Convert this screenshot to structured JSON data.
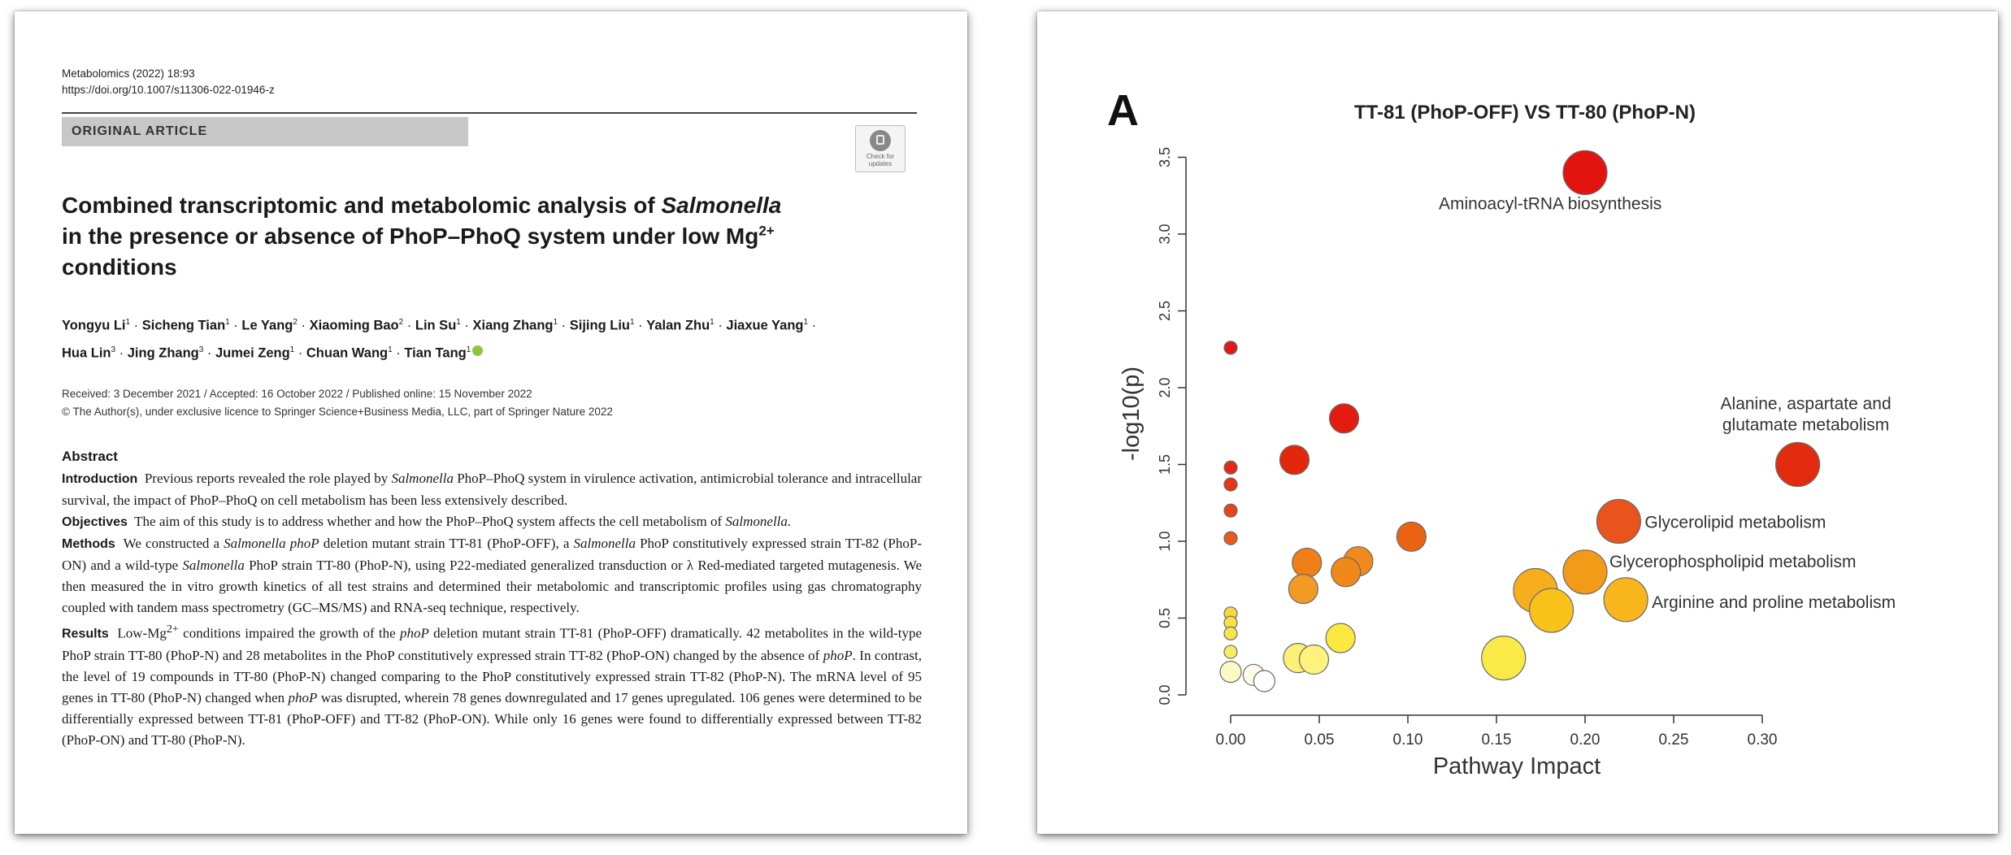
{
  "paper": {
    "journal_line": "Metabolomics (2022) 18:93",
    "doi": "https://doi.org/10.1007/s11306-022-01946-z",
    "article_type": "ORIGINAL ARTICLE",
    "check_updates_line1": "Check for",
    "check_updates_line2": "updates",
    "title_part1": "Combined transcriptomic and metabolomic analysis of ",
    "title_italic": "Salmonella",
    "title_part2": "in the presence or absence of PhoP–PhoQ system under low Mg",
    "title_sup": "2+",
    "title_part3": "conditions",
    "authors_line1": [
      {
        "name": "Yongyu Li",
        "aff": "1"
      },
      {
        "name": "Sicheng Tian",
        "aff": "1"
      },
      {
        "name": "Le Yang",
        "aff": "2"
      },
      {
        "name": "Xiaoming Bao",
        "aff": "2"
      },
      {
        "name": "Lin Su",
        "aff": "1"
      },
      {
        "name": "Xiang Zhang",
        "aff": "1"
      },
      {
        "name": "Sijing Liu",
        "aff": "1"
      },
      {
        "name": "Yalan Zhu",
        "aff": "1"
      },
      {
        "name": "Jiaxue Yang",
        "aff": "1"
      }
    ],
    "authors_line2": [
      {
        "name": "Hua Lin",
        "aff": "3"
      },
      {
        "name": "Jing Zhang",
        "aff": "3"
      },
      {
        "name": "Jumei Zeng",
        "aff": "1"
      },
      {
        "name": "Chuan Wang",
        "aff": "1"
      },
      {
        "name": "Tian Tang",
        "aff": "1"
      }
    ],
    "dates": "Received: 3 December 2021 / Accepted: 16 October 2022 / Published online: 15 November 2022",
    "copyright": "© The Author(s), under exclusive licence to Springer Science+Business Media, LLC, part of Springer Nature 2022",
    "abstract_heading": "Abstract",
    "intro_label": "Introduction",
    "intro_text_a": "Previous reports revealed the role played by ",
    "intro_italic": "Salmonella",
    "intro_text_b": " PhoP–PhoQ system in virulence activation, antimicrobial tolerance and intracellular survival, the impact of PhoP–PhoQ on cell metabolism has been less extensively described.",
    "objectives_label": "Objectives",
    "objectives_text": "The aim of this study is to address whether and how the PhoP–PhoQ system affects the cell metabolism of ",
    "objectives_italic": "Salmonella.",
    "methods_label": "Methods",
    "methods_text_a": "We constructed a ",
    "methods_italic_a": "Salmonella phoP",
    "methods_text_b": " deletion mutant strain TT-81 (PhoP-OFF), a ",
    "methods_italic_b": "Salmonella",
    "methods_text_c": " PhoP constitutively expressed strain TT-82 (PhoP-ON) and a wild-type ",
    "methods_italic_c": "Salmonella",
    "methods_text_d": " PhoP strain TT-80 (PhoP-N), using P22-mediated generalized transduction or λ Red-mediated targeted mutagenesis. We then measured the in vitro growth kinetics of all test strains and determined their metabolomic and transcriptomic profiles using gas chromatography coupled with tandem mass spectrometry (GC–MS/MS) and RNA-seq technique, respectively.",
    "results_label": "Results",
    "results_text_a": "Low-Mg",
    "results_sup": "2+",
    "results_text_b": " conditions impaired the growth of the ",
    "results_italic_a": "phoP",
    "results_text_c": " deletion mutant strain TT-81 (PhoP-OFF) dramatically. 42 metabolites in the wild-type PhoP strain TT-80 (PhoP-N) and 28 metabolites in the PhoP constitutively expressed strain TT-82 (PhoP-ON) changed by the absence of ",
    "results_italic_b": "phoP",
    "results_text_d": ". In contrast, the level of 19 compounds in TT-80 (PhoP-N) changed comparing to the PhoP constitutively expressed strain TT-82 (PhoP-N). The mRNA level of 95 genes in TT-80 (PhoP-N) changed when ",
    "results_italic_c": "phoP",
    "results_text_e": " was disrupted, wherein 78 genes downregulated and 17 genes upregulated. 106 genes were determined to be differentially expressed between TT-81 (PhoP-OFF) and TT-82 (PhoP-ON). While only 16 genes were found to differentially expressed between TT-82 (PhoP-ON) and TT-80 (PhoP-N)."
  },
  "chart_data": {
    "type": "scatter",
    "panel_label": "A",
    "title": "TT-81 (PhoP-OFF) VS TT-80 (PhoP-N)",
    "xlabel": "Pathway Impact",
    "ylabel": "-log10(p)",
    "xlim": [
      0,
      0.34
    ],
    "ylim": [
      0,
      3.5
    ],
    "xticks": [
      "0.00",
      "0.05",
      "0.10",
      "0.15",
      "0.20",
      "0.25",
      "0.30"
    ],
    "yticks": [
      "0.0",
      "0.5",
      "1.0",
      "1.5",
      "2.0",
      "2.5",
      "3.0",
      "3.5"
    ],
    "encoding": "bubble size = pathway impact, color = -log10(p) (yellow low to red high)",
    "points": [
      {
        "x": 0.2,
        "y": 3.4,
        "label": "Aminoacyl-tRNA biosynthesis",
        "size": "large",
        "color": "#e3140f"
      },
      {
        "x": 0.0,
        "y": 2.26,
        "label": "",
        "size": "tiny",
        "color": "#e01818"
      },
      {
        "x": 0.064,
        "y": 1.8,
        "label": "",
        "size": "medium",
        "color": "#e21c10"
      },
      {
        "x": 0.036,
        "y": 1.53,
        "label": "",
        "size": "medium",
        "color": "#e4260c"
      },
      {
        "x": 0.0,
        "y": 1.48,
        "label": "",
        "size": "tiny",
        "color": "#e42a14"
      },
      {
        "x": 0.0,
        "y": 1.37,
        "label": "",
        "size": "tiny",
        "color": "#e63616"
      },
      {
        "x": 0.0,
        "y": 1.2,
        "label": "",
        "size": "tiny",
        "color": "#e8441a"
      },
      {
        "x": 0.0,
        "y": 1.02,
        "label": "",
        "size": "tiny",
        "color": "#ea5a1c"
      },
      {
        "x": 0.32,
        "y": 1.5,
        "label": "Alanine, aspartate and glutamate metabolism",
        "size": "large",
        "color": "#e32c0f"
      },
      {
        "x": 0.219,
        "y": 1.13,
        "label": "Glycerolipid metabolism",
        "size": "large",
        "color": "#e8541c"
      },
      {
        "x": 0.102,
        "y": 1.03,
        "label": "",
        "size": "medium",
        "color": "#eb6212"
      },
      {
        "x": 0.072,
        "y": 0.87,
        "label": "",
        "size": "medium",
        "color": "#f08a1c"
      },
      {
        "x": 0.043,
        "y": 0.86,
        "label": "",
        "size": "medium",
        "color": "#ef7f16"
      },
      {
        "x": 0.065,
        "y": 0.8,
        "label": "",
        "size": "medium",
        "color": "#f0881a"
      },
      {
        "x": 0.041,
        "y": 0.69,
        "label": "",
        "size": "medium",
        "color": "#f19a24"
      },
      {
        "x": 0.2,
        "y": 0.8,
        "label": "Glycerophospholipid metabolism",
        "size": "large",
        "color": "#f39a18"
      },
      {
        "x": 0.172,
        "y": 0.68,
        "label": "",
        "size": "large",
        "color": "#f6ae1e"
      },
      {
        "x": 0.181,
        "y": 0.55,
        "label": "",
        "size": "large",
        "color": "#f8c21a"
      },
      {
        "x": 0.223,
        "y": 0.62,
        "label": "Arginine and proline metabolism",
        "size": "large",
        "color": "#f8b61c"
      },
      {
        "x": 0.0,
        "y": 0.53,
        "label": "",
        "size": "tiny",
        "color": "#f7da40"
      },
      {
        "x": 0.0,
        "y": 0.47,
        "label": "",
        "size": "tiny",
        "color": "#f8e04a"
      },
      {
        "x": 0.0,
        "y": 0.4,
        "label": "",
        "size": "tiny",
        "color": "#f9e450"
      },
      {
        "x": 0.0,
        "y": 0.28,
        "label": "",
        "size": "tiny",
        "color": "#faec60"
      },
      {
        "x": 0.062,
        "y": 0.37,
        "label": "",
        "size": "medium",
        "color": "#fbe840"
      },
      {
        "x": 0.038,
        "y": 0.24,
        "label": "",
        "size": "medium",
        "color": "#fcf078"
      },
      {
        "x": 0.047,
        "y": 0.23,
        "label": "",
        "size": "medium",
        "color": "#fcf27c"
      },
      {
        "x": 0.154,
        "y": 0.24,
        "label": "",
        "size": "large",
        "color": "#faea48"
      },
      {
        "x": 0.0,
        "y": 0.15,
        "label": "",
        "size": "small",
        "color": "#fdf9c4"
      },
      {
        "x": 0.013,
        "y": 0.13,
        "label": "",
        "size": "small",
        "color": "#fefce8"
      },
      {
        "x": 0.019,
        "y": 0.09,
        "label": "",
        "size": "small",
        "color": "#ffffff"
      }
    ]
  }
}
